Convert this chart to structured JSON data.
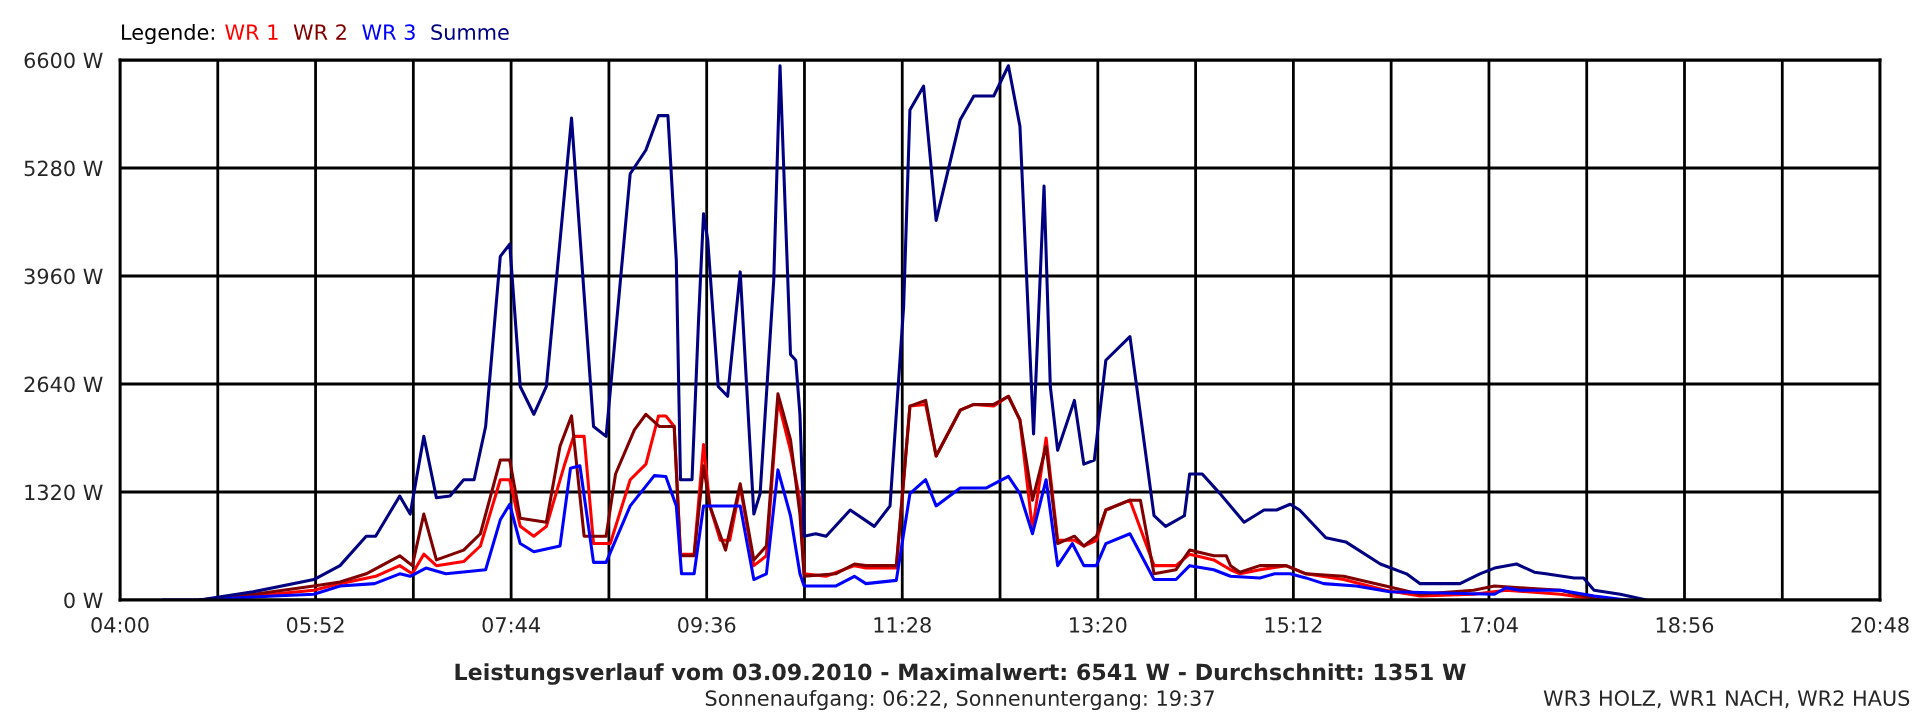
{
  "chart_data": {
    "type": "line",
    "title": "Leistungsverlauf vom 03.09.2010 - Maximalwert: 6541 W - Durchschnitt: 1351 W",
    "subtitle": "Sonnenaufgang: 06:22, Sonnenuntergang: 19:37",
    "legend_title": "Legende:",
    "annotations": [
      "WR3 HOLZ, WR1 NACH, WR2 HAUS"
    ],
    "legend": "top left",
    "grid": true,
    "line_style": "solid",
    "xlim": [
      4,
      20.8
    ],
    "xticks": [
      {
        "value": 4,
        "label": "04:00"
      },
      {
        "value": 4.9333,
        "label": null
      },
      {
        "value": 5.8667,
        "label": "05:52"
      },
      {
        "value": 6.8,
        "label": null
      },
      {
        "value": 7.7333,
        "label": "07:44"
      },
      {
        "value": 8.6667,
        "label": null
      },
      {
        "value": 9.6,
        "label": "09:36"
      },
      {
        "value": 10.5333,
        "label": null
      },
      {
        "value": 11.4667,
        "label": "11:28"
      },
      {
        "value": 12.4,
        "label": null
      },
      {
        "value": 13.3333,
        "label": "13:20"
      },
      {
        "value": 14.2667,
        "label": null
      },
      {
        "value": 15.2,
        "label": "15:12"
      },
      {
        "value": 16.1333,
        "label": null
      },
      {
        "value": 17.0667,
        "label": "17:04"
      },
      {
        "value": 18,
        "label": null
      },
      {
        "value": 18.9333,
        "label": "18:56"
      },
      {
        "value": 19.8667,
        "label": null
      },
      {
        "value": 20.8,
        "label": "20:48"
      }
    ],
    "ylim": [
      0,
      6600
    ],
    "yticks": [
      {
        "value": 0,
        "label": "0 W"
      },
      {
        "value": 1320,
        "label": "1320 W"
      },
      {
        "value": 2640,
        "label": "2640 W"
      },
      {
        "value": 3960,
        "label": "3960 W"
      },
      {
        "value": 5280,
        "label": "5280 W"
      },
      {
        "value": 6600,
        "label": "6600 W"
      }
    ],
    "series": [
      {
        "name": "WR 1",
        "color": "#ff0000",
        "x": [
          4.76,
          5.28,
          5.85,
          6.1,
          6.44,
          6.67,
          6.79,
          6.9,
          7.02,
          7.28,
          7.44,
          7.63,
          7.72,
          7.82,
          7.95,
          8.07,
          8.24,
          8.33,
          8.43,
          8.52,
          8.68,
          8.87,
          9.02,
          9.14,
          9.21,
          9.29,
          9.35,
          9.48,
          9.57,
          9.63,
          9.73,
          9.82,
          9.92,
          10.05,
          10.17,
          10.28,
          10.4,
          10.49,
          10.53,
          10.74,
          11.01,
          11.12,
          11.41,
          11.54,
          11.69,
          11.79,
          12.02,
          12.15,
          12.34,
          12.48,
          12.59,
          12.71,
          12.84,
          12.95,
          13.11,
          13.2,
          13.32,
          13.41,
          13.64,
          13.87,
          14.08,
          14.21,
          14.44,
          14.6,
          14.69,
          14.88,
          15.13,
          15.32,
          15.68,
          16.08,
          16.41,
          16.92,
          17.23,
          17.75,
          18.13
        ],
        "values": [
          0,
          50,
          120,
          200,
          290,
          420,
          320,
          560,
          420,
          470,
          660,
          1470,
          1470,
          900,
          780,
          900,
          1640,
          2000,
          2000,
          690,
          690,
          1470,
          1660,
          2250,
          2250,
          2120,
          560,
          560,
          1900,
          1150,
          730,
          730,
          1390,
          420,
          540,
          2440,
          1830,
          1220,
          320,
          290,
          420,
          390,
          390,
          2370,
          2390,
          1760,
          2320,
          2390,
          2370,
          2490,
          2200,
          860,
          1980,
          730,
          730,
          660,
          730,
          1100,
          1220,
          420,
          420,
          560,
          490,
          370,
          320,
          370,
          420,
          320,
          250,
          120,
          50,
          70,
          120,
          70,
          0
        ]
      },
      {
        "name": "WR 2",
        "color": "#800000",
        "x": [
          4.76,
          5.28,
          5.85,
          6.1,
          6.35,
          6.67,
          6.79,
          6.9,
          7.02,
          7.28,
          7.44,
          7.63,
          7.72,
          7.82,
          8.07,
          8.2,
          8.31,
          8.43,
          8.64,
          8.73,
          8.91,
          9.02,
          9.15,
          9.25,
          9.29,
          9.35,
          9.48,
          9.57,
          9.63,
          9.78,
          9.92,
          10.05,
          10.17,
          10.28,
          10.4,
          10.49,
          10.53,
          10.83,
          11.01,
          11.12,
          11.41,
          11.54,
          11.69,
          11.79,
          12.02,
          12.15,
          12.34,
          12.48,
          12.59,
          12.71,
          12.84,
          12.95,
          13.11,
          13.2,
          13.32,
          13.41,
          13.64,
          13.74,
          13.87,
          14.08,
          14.21,
          14.44,
          14.56,
          14.6,
          14.69,
          14.88,
          15.13,
          15.32,
          15.68,
          16.08,
          16.41,
          16.92,
          17.12,
          17.36,
          17.75,
          18.13
        ],
        "values": [
          0,
          70,
          170,
          220,
          320,
          540,
          420,
          1050,
          490,
          610,
          810,
          1710,
          1710,
          1000,
          950,
          1880,
          2250,
          780,
          780,
          1540,
          2080,
          2270,
          2120,
          2120,
          2120,
          540,
          540,
          1640,
          1150,
          610,
          1420,
          490,
          660,
          2520,
          1960,
          1050,
          290,
          320,
          440,
          420,
          420,
          2370,
          2440,
          1760,
          2320,
          2390,
          2390,
          2490,
          2200,
          1220,
          1880,
          690,
          780,
          660,
          780,
          1100,
          1220,
          1220,
          320,
          370,
          610,
          540,
          540,
          420,
          340,
          420,
          420,
          320,
          290,
          170,
          70,
          120,
          170,
          150,
          120,
          0
        ]
      },
      {
        "name": "WR 3",
        "color": "#0000ff",
        "x": [
          4.76,
          5.47,
          5.85,
          6.1,
          6.43,
          6.67,
          6.77,
          6.92,
          7.11,
          7.49,
          7.63,
          7.72,
          7.82,
          7.95,
          8.2,
          8.3,
          8.39,
          8.52,
          8.64,
          8.87,
          9.1,
          9.21,
          9.31,
          9.36,
          9.48,
          9.57,
          9.92,
          10.05,
          10.17,
          10.28,
          10.4,
          10.49,
          10.53,
          10.83,
          11.01,
          11.12,
          11.41,
          11.54,
          11.69,
          11.79,
          12.02,
          12.27,
          12.48,
          12.59,
          12.71,
          12.84,
          12.95,
          13.09,
          13.2,
          13.32,
          13.41,
          13.64,
          13.87,
          14.08,
          14.21,
          14.44,
          14.6,
          14.88,
          15.02,
          15.17,
          15.32,
          15.49,
          15.8,
          16.12,
          17.12,
          17.23,
          17.36,
          17.75,
          18.07,
          18.38
        ],
        "values": [
          0,
          50,
          70,
          170,
          200,
          320,
          290,
          390,
          320,
          370,
          980,
          1170,
          690,
          590,
          660,
          1610,
          1640,
          460,
          460,
          1150,
          1520,
          1510,
          1150,
          320,
          320,
          1150,
          1150,
          250,
          320,
          1590,
          1030,
          320,
          170,
          170,
          290,
          200,
          240,
          1300,
          1470,
          1150,
          1370,
          1370,
          1510,
          1300,
          810,
          1470,
          420,
          690,
          420,
          420,
          690,
          810,
          250,
          250,
          420,
          370,
          290,
          270,
          320,
          320,
          270,
          200,
          170,
          100,
          70,
          150,
          120,
          120,
          50,
          0
        ]
      },
      {
        "name": "Summe",
        "color": "#000080",
        "x": [
          4.41,
          4.76,
          5.27,
          5.85,
          6.1,
          6.35,
          6.44,
          6.67,
          6.77,
          6.9,
          7.02,
          7.15,
          7.28,
          7.38,
          7.49,
          7.63,
          7.72,
          7.82,
          7.95,
          8.07,
          8.31,
          8.52,
          8.64,
          8.87,
          9.02,
          9.14,
          9.23,
          9.31,
          9.35,
          9.46,
          9.52,
          9.54,
          9.57,
          9.61,
          9.71,
          9.8,
          9.92,
          10.05,
          10.11,
          10.24,
          10.3,
          10.4,
          10.45,
          10.49,
          10.53,
          10.64,
          10.74,
          10.97,
          11.2,
          11.35,
          11.48,
          11.54,
          11.67,
          11.79,
          12.02,
          12.15,
          12.34,
          12.48,
          12.59,
          12.72,
          12.82,
          12.88,
          12.95,
          13.11,
          13.2,
          13.3,
          13.41,
          13.64,
          13.87,
          13.98,
          14.16,
          14.21,
          14.33,
          14.5,
          14.73,
          14.92,
          15.04,
          15.17,
          15.26,
          15.51,
          15.7,
          16.03,
          16.28,
          16.41,
          16.79,
          16.98,
          17.12,
          17.33,
          17.5,
          17.61,
          17.88,
          17.97,
          18.07,
          18.32,
          18.57
        ],
        "values": [
          0,
          0,
          100,
          250,
          420,
          780,
          780,
          1270,
          1050,
          2000,
          1250,
          1270,
          1470,
          1470,
          2120,
          4200,
          4350,
          2610,
          2270,
          2610,
          5890,
          2120,
          2000,
          5210,
          5500,
          5920,
          5920,
          4150,
          1470,
          1470,
          3350,
          3910,
          4720,
          4400,
          2610,
          2490,
          4010,
          1050,
          1300,
          3910,
          6530,
          3000,
          2930,
          2270,
          780,
          810,
          780,
          1100,
          900,
          1150,
          3590,
          5990,
          6280,
          4640,
          5870,
          6160,
          6160,
          6530,
          5790,
          2030,
          5060,
          2610,
          1830,
          2440,
          1660,
          1710,
          2930,
          3220,
          1030,
          900,
          1030,
          1540,
          1540,
          1300,
          950,
          1100,
          1100,
          1170,
          1100,
          760,
          710,
          440,
          320,
          200,
          200,
          320,
          390,
          440,
          340,
          320,
          270,
          270,
          120,
          70,
          0
        ]
      }
    ]
  }
}
